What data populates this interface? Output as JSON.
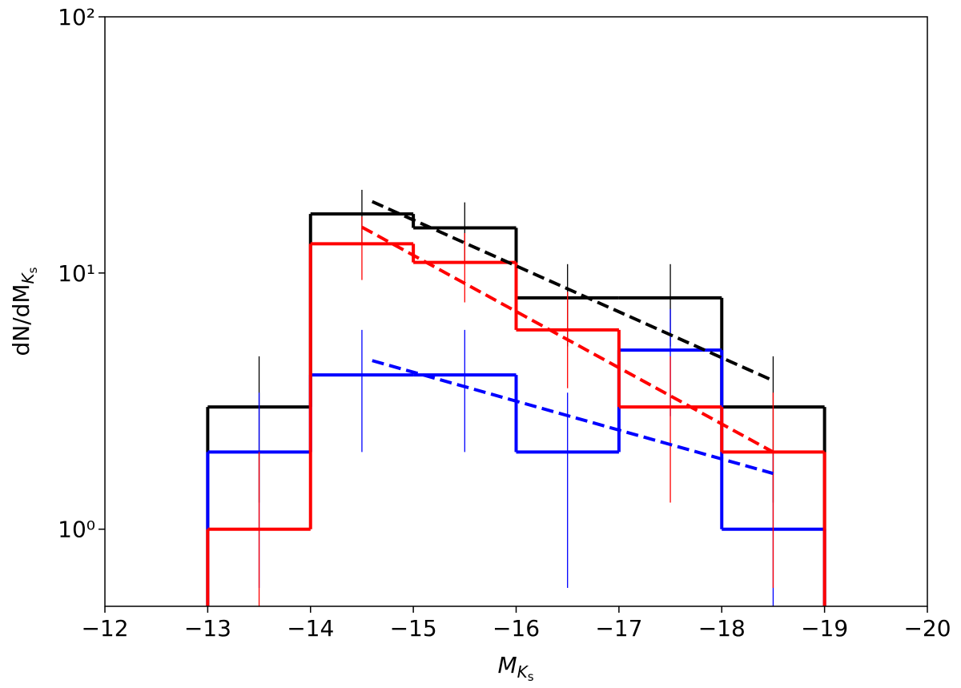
{
  "chart_data": {
    "type": "histogram",
    "xlabel": {
      "main": "M",
      "sub": "K",
      "subsub": "s"
    },
    "ylabel": {
      "main": "dN/dM",
      "sub": "K",
      "subsub": "s"
    },
    "bins": [
      -13,
      -14,
      -15,
      -16,
      -17,
      -18,
      -19
    ],
    "series": [
      {
        "color": "#000000",
        "values": [
          3,
          17,
          15,
          8,
          8,
          3
        ],
        "errors": [
          1.73,
          4.12,
          3.87,
          2.83,
          2.83,
          1.73
        ]
      },
      {
        "color": "#0000ff",
        "values": [
          2,
          4,
          4,
          2,
          5,
          1
        ],
        "errors": [
          1.41,
          2,
          2,
          1.41,
          2.24,
          1
        ]
      },
      {
        "color": "#ff0000",
        "values": [
          1,
          13,
          11,
          6,
          3,
          2
        ],
        "errors": [
          1,
          3.61,
          3.32,
          2.45,
          1.73,
          1.41
        ]
      }
    ],
    "fits": [
      {
        "color": "#000000",
        "x": [
          -14.6,
          -18.5
        ],
        "values": [
          19.0,
          3.8
        ]
      },
      {
        "color": "#ff0000",
        "x": [
          -14.5,
          -18.5
        ],
        "values": [
          15.1,
          2.0
        ]
      },
      {
        "color": "#0000ff",
        "x": [
          -14.6,
          -18.5
        ],
        "values": [
          4.55,
          1.65
        ]
      }
    ],
    "xlim": [
      -12,
      -20
    ],
    "xticks": [
      {
        "value": -12,
        "label": "−12"
      },
      {
        "value": -13,
        "label": "−13"
      },
      {
        "value": -14,
        "label": "−14"
      },
      {
        "value": -15,
        "label": "−15"
      },
      {
        "value": -16,
        "label": "−16"
      },
      {
        "value": -17,
        "label": "−17"
      },
      {
        "value": -18,
        "label": "−18"
      },
      {
        "value": -19,
        "label": "−19"
      },
      {
        "value": -20,
        "label": "−20"
      }
    ],
    "ylim": [
      0.5,
      100
    ],
    "yscale": "log",
    "yticks": [
      {
        "value": 1,
        "label": "10⁰"
      },
      {
        "value": 10,
        "label": "10¹"
      },
      {
        "value": 100,
        "label": "10²"
      }
    ]
  }
}
